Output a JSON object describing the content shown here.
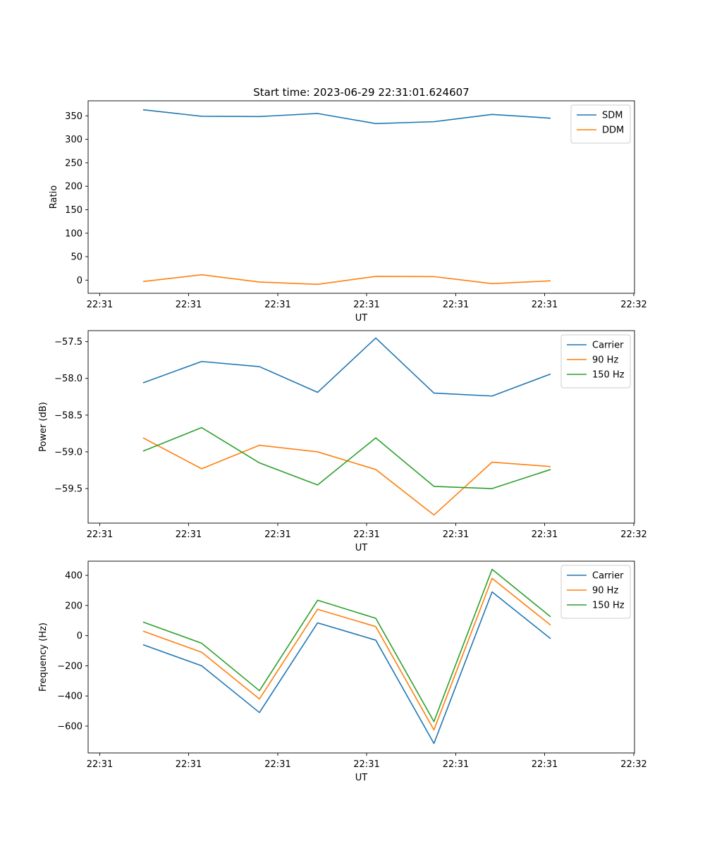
{
  "figure": {
    "title": "Start time: 2023-06-29 22:31:01.624607"
  },
  "colors": {
    "blue": "#1f77b4",
    "orange": "#ff7f0e",
    "green": "#2ca02c"
  },
  "chart_data": [
    {
      "type": "line",
      "title": "Start time: 2023-06-29 22:31:01.624607",
      "xlabel": "UT",
      "ylabel": "Ratio",
      "x_tick_labels": [
        "22:31",
        "22:31",
        "22:31",
        "22:31",
        "22:31",
        "22:31",
        "22:32"
      ],
      "y_ticks": [
        0,
        50,
        100,
        150,
        200,
        250,
        300,
        350
      ],
      "ylim": [
        -28,
        382
      ],
      "grid": false,
      "legend_position": "upper right",
      "series": [
        {
          "name": "SDM",
          "color": "#1f77b4",
          "values": [
            363,
            349,
            348.5,
            355,
            333.5,
            337.5,
            353,
            345
          ]
        },
        {
          "name": "DDM",
          "color": "#ff7f0e",
          "values": [
            -3,
            11.5,
            -4,
            -9,
            8,
            7.5,
            -7.5,
            -1.5
          ]
        }
      ]
    },
    {
      "type": "line",
      "title": "",
      "xlabel": "UT",
      "ylabel": "Power (dB)",
      "x_tick_labels": [
        "22:31",
        "22:31",
        "22:31",
        "22:31",
        "22:31",
        "22:31",
        "22:32"
      ],
      "y_ticks": [
        -59.5,
        -59.0,
        -58.5,
        -58.0,
        -57.5
      ],
      "y_tick_labels": [
        "−59.5",
        "−59.0",
        "−58.5",
        "−58.0",
        "−57.5"
      ],
      "ylim": [
        -59.97,
        -57.35
      ],
      "grid": false,
      "legend_position": "upper right",
      "series": [
        {
          "name": "Carrier",
          "color": "#1f77b4",
          "values": [
            -58.06,
            -57.77,
            -57.84,
            -58.19,
            -57.45,
            -58.2,
            -58.24,
            -57.94
          ]
        },
        {
          "name": "90 Hz",
          "color": "#ff7f0e",
          "values": [
            -58.81,
            -59.23,
            -58.91,
            -59.0,
            -59.24,
            -59.86,
            -59.14,
            -59.2
          ]
        },
        {
          "name": "150 Hz",
          "color": "#2ca02c",
          "values": [
            -58.99,
            -58.67,
            -59.15,
            -59.45,
            -58.81,
            -59.47,
            -59.5,
            -59.24
          ]
        }
      ]
    },
    {
      "type": "line",
      "title": "",
      "xlabel": "UT",
      "ylabel": "Frequency (Hz)",
      "x_tick_labels": [
        "22:31",
        "22:31",
        "22:31",
        "22:31",
        "22:31",
        "22:31",
        "22:32"
      ],
      "y_ticks": [
        -600,
        -400,
        -200,
        0,
        200,
        400
      ],
      "y_tick_labels": [
        "−600",
        "−400",
        "−200",
        "0",
        "200",
        "400"
      ],
      "ylim": [
        -778,
        494
      ],
      "grid": false,
      "legend_position": "upper right",
      "series": [
        {
          "name": "Carrier",
          "color": "#1f77b4",
          "values": [
            -60,
            -200,
            -510,
            85,
            -30,
            -715,
            290,
            -20
          ]
        },
        {
          "name": "90 Hz",
          "color": "#ff7f0e",
          "values": [
            30,
            -110,
            -420,
            175,
            60,
            -625,
            380,
            70
          ]
        },
        {
          "name": "150 Hz",
          "color": "#2ca02c",
          "values": [
            90,
            -50,
            -365,
            235,
            115,
            -570,
            440,
            125
          ]
        }
      ]
    }
  ]
}
